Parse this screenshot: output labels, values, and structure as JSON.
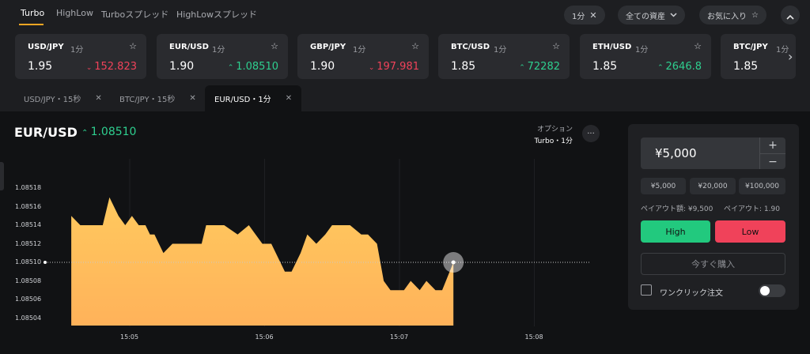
{
  "top_tabs": [
    {
      "label": "Turbo",
      "active": true
    },
    {
      "label": "HighLow",
      "active": false
    },
    {
      "label": "Turboスプレッド",
      "active": false
    },
    {
      "label": "HighLowスプレッド",
      "active": false
    }
  ],
  "filters": {
    "timeframe": "1分",
    "assets": "全ての資産",
    "favorites": "お気に入り"
  },
  "tickers": [
    {
      "symbol": "USD/JPY",
      "timeframe": "1分",
      "payout": "1.95",
      "direction": "down",
      "price": "152.823"
    },
    {
      "symbol": "EUR/USD",
      "timeframe": "1分",
      "payout": "1.90",
      "direction": "up",
      "price": "1.08510"
    },
    {
      "symbol": "GBP/JPY",
      "timeframe": "1分",
      "payout": "1.90",
      "direction": "down",
      "price": "197.981"
    },
    {
      "symbol": "BTC/USD",
      "timeframe": "1分",
      "payout": "1.85",
      "direction": "up",
      "price": "72282"
    },
    {
      "symbol": "ETH/USD",
      "timeframe": "1分",
      "payout": "1.85",
      "direction": "up",
      "price": "2646.8"
    },
    {
      "symbol": "BTC/JPY",
      "timeframe": "1分",
      "payout": "1.85",
      "direction": "up",
      "price": ""
    }
  ],
  "open_tabs": [
    {
      "label": "USD/JPY・15秒",
      "active": false
    },
    {
      "label": "BTC/JPY・15秒",
      "active": false
    },
    {
      "label": "EUR/USD・1分",
      "active": true
    }
  ],
  "chart_header": {
    "pair": "EUR/USD",
    "price": "1.08510",
    "option_label": "オプション",
    "option_value": "Turbo・1分"
  },
  "chart_data": {
    "type": "area",
    "title": "",
    "xlabel": "",
    "ylabel": "",
    "ylim": [
      1.08503,
      1.08519
    ],
    "y_ticks": [
      "1.08518",
      "1.08516",
      "1.08514",
      "1.08512",
      "1.08510",
      "1.08508",
      "1.08506",
      "1.08504"
    ],
    "x_ticks": [
      "15:05",
      "15:06",
      "15:07",
      "15:08"
    ],
    "series": [
      {
        "x": [
          "15:04:34",
          "15:04:38",
          "15:04:44",
          "15:04:48",
          "15:04:51",
          "15:04:55",
          "15:04:58",
          "15:05:01",
          "15:05:04",
          "15:05:07",
          "15:05:09",
          "15:05:11",
          "15:05:13",
          "15:05:15",
          "15:05:19",
          "15:05:23",
          "15:05:29",
          "15:05:32",
          "15:05:34",
          "15:05:38",
          "15:05:42",
          "15:05:48",
          "15:05:53",
          "15:05:56",
          "15:05:59",
          "15:06:03",
          "15:06:09",
          "15:06:12",
          "15:06:16",
          "15:06:19",
          "15:06:23",
          "15:06:27",
          "15:06:30",
          "15:06:34",
          "15:06:38",
          "15:06:43",
          "15:06:46",
          "15:06:50",
          "15:06:53",
          "15:06:56",
          "15:06:59",
          "15:07:02",
          "15:07:05",
          "15:07:09",
          "15:07:12",
          "15:07:16",
          "15:07:19",
          "15:07:24"
        ],
        "y": [
          1.08515,
          1.08514,
          1.08514,
          1.08514,
          1.08517,
          1.08515,
          1.08514,
          1.08515,
          1.08514,
          1.08514,
          1.08513,
          1.08513,
          1.08512,
          1.08511,
          1.08512,
          1.08512,
          1.08512,
          1.08512,
          1.08514,
          1.08514,
          1.08514,
          1.08513,
          1.08514,
          1.08513,
          1.08512,
          1.08512,
          1.08509,
          1.08509,
          1.08511,
          1.08513,
          1.08512,
          1.08513,
          1.08514,
          1.08514,
          1.08514,
          1.08513,
          1.08513,
          1.08512,
          1.08508,
          1.08507,
          1.08507,
          1.08507,
          1.08508,
          1.08507,
          1.08508,
          1.08507,
          1.08507,
          1.0851
        ]
      }
    ],
    "current_price": 1.0851
  },
  "trade_panel": {
    "amount": "¥5,000",
    "plus": "+",
    "minus": "−",
    "presets": [
      "¥5,000",
      "¥20,000",
      "¥100,000"
    ],
    "payout_amount": "ペイアウト額: ¥9,500",
    "payout_rate": "ペイアウト: 1.90",
    "high_label": "High",
    "low_label": "Low",
    "buy_now_label": "今すぐ購入",
    "one_click_label": "ワンクリック注文"
  },
  "colors": {
    "up": "#2ecf8f",
    "down": "#f0425a",
    "accent": "#f5a623",
    "area_top": "#ffc95e",
    "area_bottom": "#ffb25a"
  }
}
